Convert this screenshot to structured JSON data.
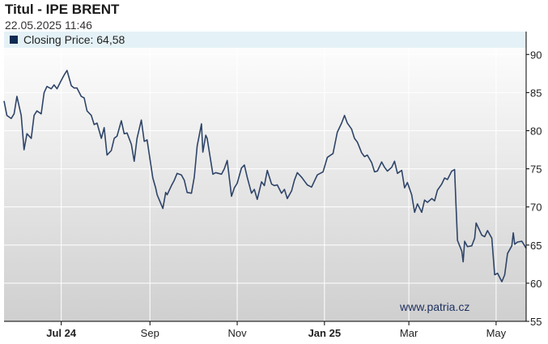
{
  "header": {
    "title": "Titul - IPE BRENT",
    "timestamp": "22.05.2025 11:46"
  },
  "colors": {
    "line": "#2e4468",
    "plot_bg_top": "#ffffff",
    "plot_bg_bottom": "#cfcfcf",
    "legend_band": "#e4f1f6",
    "grid": "#ffffff",
    "axis": "#000000"
  },
  "chart_data": {
    "type": "line",
    "title": "Titul - IPE BRENT",
    "subtitle": "22.05.2025 11:46",
    "legend": "Closing Price: 64,58",
    "watermark": "www.patria.cz",
    "ylim": [
      55,
      93
    ],
    "yticks": [
      55,
      60,
      65,
      70,
      75,
      80,
      85,
      90
    ],
    "xlim": [
      "2024-05-22",
      "2025-05-22"
    ],
    "xticks": [
      {
        "date": "2024-07-01",
        "label": "Jul 24",
        "bold": true
      },
      {
        "date": "2024-09-01",
        "label": "Sep",
        "bold": false
      },
      {
        "date": "2024-11-01",
        "label": "Nov",
        "bold": false
      },
      {
        "date": "2025-01-01",
        "label": "Jan 25",
        "bold": true
      },
      {
        "date": "2025-03-01",
        "label": "Mar",
        "bold": false
      },
      {
        "date": "2025-05-01",
        "label": "May",
        "bold": false
      }
    ],
    "grid": true,
    "legend_position": "top-left",
    "series": [
      {
        "name": "Closing Price",
        "points": [
          [
            "2024-05-22",
            83.9
          ],
          [
            "2024-05-24",
            82.0
          ],
          [
            "2024-05-27",
            81.6
          ],
          [
            "2024-05-29",
            82.2
          ],
          [
            "2024-05-31",
            84.5
          ],
          [
            "2024-06-03",
            82.0
          ],
          [
            "2024-06-05",
            77.5
          ],
          [
            "2024-06-07",
            79.6
          ],
          [
            "2024-06-10",
            79.0
          ],
          [
            "2024-06-12",
            82.0
          ],
          [
            "2024-06-14",
            82.6
          ],
          [
            "2024-06-17",
            82.2
          ],
          [
            "2024-06-19",
            85.0
          ],
          [
            "2024-06-21",
            85.8
          ],
          [
            "2024-06-24",
            85.5
          ],
          [
            "2024-06-26",
            86.0
          ],
          [
            "2024-06-28",
            85.5
          ],
          [
            "2024-07-01",
            86.6
          ],
          [
            "2024-07-03",
            87.3
          ],
          [
            "2024-07-05",
            87.9
          ],
          [
            "2024-07-08",
            85.9
          ],
          [
            "2024-07-10",
            85.6
          ],
          [
            "2024-07-12",
            85.6
          ],
          [
            "2024-07-15",
            84.5
          ],
          [
            "2024-07-17",
            84.3
          ],
          [
            "2024-07-19",
            82.6
          ],
          [
            "2024-07-22",
            82.0
          ],
          [
            "2024-07-24",
            80.8
          ],
          [
            "2024-07-26",
            81.0
          ],
          [
            "2024-07-29",
            79.0
          ],
          [
            "2024-07-31",
            80.4
          ],
          [
            "2024-08-02",
            76.8
          ],
          [
            "2024-08-05",
            77.4
          ],
          [
            "2024-08-07",
            79.0
          ],
          [
            "2024-08-09",
            79.3
          ],
          [
            "2024-08-12",
            81.3
          ],
          [
            "2024-08-14",
            79.6
          ],
          [
            "2024-08-16",
            79.7
          ],
          [
            "2024-08-19",
            78.2
          ],
          [
            "2024-08-21",
            76.0
          ],
          [
            "2024-08-23",
            79.0
          ],
          [
            "2024-08-26",
            81.4
          ],
          [
            "2024-08-28",
            78.6
          ],
          [
            "2024-08-30",
            78.8
          ],
          [
            "2024-09-03",
            73.8
          ],
          [
            "2024-09-05",
            72.5
          ],
          [
            "2024-09-06",
            71.6
          ],
          [
            "2024-09-10",
            69.8
          ],
          [
            "2024-09-12",
            71.9
          ],
          [
            "2024-09-13",
            71.6
          ],
          [
            "2024-09-16",
            72.8
          ],
          [
            "2024-09-18",
            73.5
          ],
          [
            "2024-09-20",
            74.4
          ],
          [
            "2024-09-23",
            74.2
          ],
          [
            "2024-09-25",
            73.5
          ],
          [
            "2024-09-27",
            71.9
          ],
          [
            "2024-09-30",
            71.8
          ],
          [
            "2024-10-02",
            73.9
          ],
          [
            "2024-10-04",
            78.0
          ],
          [
            "2024-10-07",
            80.9
          ],
          [
            "2024-10-08",
            77.2
          ],
          [
            "2024-10-10",
            79.4
          ],
          [
            "2024-10-11",
            79.0
          ],
          [
            "2024-10-15",
            74.3
          ],
          [
            "2024-10-17",
            74.5
          ],
          [
            "2024-10-21",
            74.3
          ],
          [
            "2024-10-23",
            75.0
          ],
          [
            "2024-10-25",
            76.1
          ],
          [
            "2024-10-28",
            71.4
          ],
          [
            "2024-10-30",
            72.5
          ],
          [
            "2024-11-01",
            73.1
          ],
          [
            "2024-11-04",
            75.1
          ],
          [
            "2024-11-06",
            75.5
          ],
          [
            "2024-11-08",
            73.9
          ],
          [
            "2024-11-11",
            71.8
          ],
          [
            "2024-11-13",
            72.3
          ],
          [
            "2024-11-15",
            71.0
          ],
          [
            "2024-11-18",
            73.3
          ],
          [
            "2024-11-20",
            72.8
          ],
          [
            "2024-11-22",
            74.8
          ],
          [
            "2024-11-25",
            73.0
          ],
          [
            "2024-11-27",
            72.8
          ],
          [
            "2024-11-29",
            72.9
          ],
          [
            "2024-12-02",
            71.8
          ],
          [
            "2024-12-04",
            72.3
          ],
          [
            "2024-12-06",
            71.1
          ],
          [
            "2024-12-09",
            72.1
          ],
          [
            "2024-12-11",
            73.5
          ],
          [
            "2024-12-13",
            74.5
          ],
          [
            "2024-12-16",
            73.9
          ],
          [
            "2024-12-18",
            73.4
          ],
          [
            "2024-12-20",
            72.9
          ],
          [
            "2024-12-23",
            72.6
          ],
          [
            "2024-12-27",
            74.2
          ],
          [
            "2024-12-31",
            74.6
          ],
          [
            "2025-01-03",
            76.5
          ],
          [
            "2025-01-07",
            77.0
          ],
          [
            "2025-01-10",
            79.8
          ],
          [
            "2025-01-13",
            81.0
          ],
          [
            "2025-01-15",
            82.0
          ],
          [
            "2025-01-17",
            81.0
          ],
          [
            "2025-01-20",
            80.2
          ],
          [
            "2025-01-22",
            79.0
          ],
          [
            "2025-01-24",
            78.5
          ],
          [
            "2025-01-27",
            77.1
          ],
          [
            "2025-01-29",
            76.6
          ],
          [
            "2025-01-31",
            76.8
          ],
          [
            "2025-02-03",
            75.8
          ],
          [
            "2025-02-05",
            74.6
          ],
          [
            "2025-02-07",
            74.7
          ],
          [
            "2025-02-10",
            75.9
          ],
          [
            "2025-02-12",
            75.2
          ],
          [
            "2025-02-14",
            74.7
          ],
          [
            "2025-02-17",
            75.2
          ],
          [
            "2025-02-19",
            76.0
          ],
          [
            "2025-02-21",
            74.4
          ],
          [
            "2025-02-24",
            74.8
          ],
          [
            "2025-02-26",
            72.5
          ],
          [
            "2025-02-28",
            73.2
          ],
          [
            "2025-03-03",
            71.6
          ],
          [
            "2025-03-05",
            69.3
          ],
          [
            "2025-03-07",
            70.4
          ],
          [
            "2025-03-10",
            69.3
          ],
          [
            "2025-03-12",
            70.9
          ],
          [
            "2025-03-14",
            70.6
          ],
          [
            "2025-03-17",
            71.1
          ],
          [
            "2025-03-19",
            70.8
          ],
          [
            "2025-03-21",
            72.2
          ],
          [
            "2025-03-24",
            73.0
          ],
          [
            "2025-03-26",
            73.8
          ],
          [
            "2025-03-28",
            73.6
          ],
          [
            "2025-03-31",
            74.7
          ],
          [
            "2025-04-02",
            74.9
          ],
          [
            "2025-04-03",
            70.1
          ],
          [
            "2025-04-04",
            65.6
          ],
          [
            "2025-04-07",
            64.2
          ],
          [
            "2025-04-08",
            62.8
          ],
          [
            "2025-04-09",
            65.5
          ],
          [
            "2025-04-11",
            64.8
          ],
          [
            "2025-04-14",
            64.9
          ],
          [
            "2025-04-16",
            65.9
          ],
          [
            "2025-04-17",
            67.9
          ],
          [
            "2025-04-21",
            66.3
          ],
          [
            "2025-04-23",
            66.1
          ],
          [
            "2025-04-25",
            66.9
          ],
          [
            "2025-04-28",
            65.9
          ],
          [
            "2025-04-30",
            61.1
          ],
          [
            "2025-05-02",
            61.3
          ],
          [
            "2025-05-05",
            60.2
          ],
          [
            "2025-05-07",
            61.1
          ],
          [
            "2025-05-09",
            63.9
          ],
          [
            "2025-05-12",
            64.9
          ],
          [
            "2025-05-13",
            66.6
          ],
          [
            "2025-05-14",
            65.1
          ],
          [
            "2025-05-16",
            65.4
          ],
          [
            "2025-05-19",
            65.5
          ],
          [
            "2025-05-21",
            64.9
          ],
          [
            "2025-05-22",
            64.58
          ]
        ]
      }
    ]
  }
}
